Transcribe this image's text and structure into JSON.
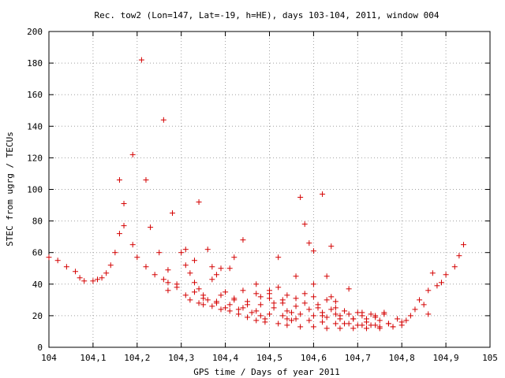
{
  "chart_data": {
    "type": "scatter",
    "title": "Rec. tow2 (Lon=147, Lat=-19, h=HE), days 103-104, 2011, window 004",
    "xlabel": "GPS time / Days of year 2011",
    "ylabel": "STEC from ugrg / TECUs",
    "xlim": [
      104,
      105
    ],
    "ylim": [
      0,
      200
    ],
    "xticks": [
      "104",
      "104,1",
      "104,2",
      "104,3",
      "104,4",
      "104,5",
      "104,6",
      "104,7",
      "104,8",
      "104,9",
      "105"
    ],
    "xtick_values": [
      104,
      104.1,
      104.2,
      104.3,
      104.4,
      104.5,
      104.6,
      104.7,
      104.8,
      104.9,
      105
    ],
    "yticks": [
      "0",
      "20",
      "40",
      "60",
      "80",
      "100",
      "120",
      "140",
      "160",
      "180",
      "200"
    ],
    "ytick_values": [
      0,
      20,
      40,
      60,
      80,
      100,
      120,
      140,
      160,
      180,
      200
    ],
    "grid": true,
    "marker": "+",
    "color": "#d40000",
    "points": [
      [
        104.0,
        57
      ],
      [
        104.02,
        55
      ],
      [
        104.04,
        51
      ],
      [
        104.06,
        48
      ],
      [
        104.07,
        44
      ],
      [
        104.08,
        42
      ],
      [
        104.1,
        42
      ],
      [
        104.11,
        43
      ],
      [
        104.13,
        47
      ],
      [
        104.14,
        52
      ],
      [
        104.15,
        60
      ],
      [
        104.16,
        72
      ],
      [
        104.17,
        77
      ],
      [
        104.17,
        91
      ],
      [
        104.16,
        106
      ],
      [
        104.19,
        122
      ],
      [
        104.21,
        182
      ],
      [
        104.19,
        65
      ],
      [
        104.2,
        57
      ],
      [
        104.22,
        51
      ],
      [
        104.22,
        106
      ],
      [
        104.23,
        76
      ],
      [
        104.24,
        46
      ],
      [
        104.26,
        43
      ],
      [
        104.25,
        60
      ],
      [
        104.27,
        41
      ],
      [
        104.26,
        144
      ],
      [
        104.27,
        49
      ],
      [
        104.28,
        85
      ],
      [
        104.29,
        40
      ],
      [
        104.29,
        38
      ],
      [
        104.3,
        60
      ],
      [
        104.31,
        62
      ],
      [
        104.31,
        52
      ],
      [
        104.32,
        47
      ],
      [
        104.33,
        55
      ],
      [
        104.33,
        41
      ],
      [
        104.34,
        37
      ],
      [
        104.35,
        33
      ],
      [
        104.36,
        30
      ],
      [
        104.34,
        92
      ],
      [
        104.36,
        62
      ],
      [
        104.37,
        51
      ],
      [
        104.37,
        43
      ],
      [
        104.38,
        46
      ],
      [
        104.38,
        28
      ],
      [
        104.39,
        50
      ],
      [
        104.4,
        35
      ],
      [
        104.4,
        25
      ],
      [
        104.41,
        50
      ],
      [
        104.42,
        30
      ],
      [
        104.42,
        57
      ],
      [
        104.43,
        24
      ],
      [
        104.44,
        68
      ],
      [
        104.45,
        27
      ],
      [
        104.46,
        22
      ],
      [
        104.47,
        40
      ],
      [
        104.48,
        32
      ],
      [
        104.48,
        20
      ],
      [
        104.49,
        18
      ],
      [
        104.5,
        36
      ],
      [
        104.51,
        28
      ],
      [
        104.52,
        57
      ],
      [
        104.53,
        30
      ],
      [
        104.54,
        18
      ],
      [
        104.55,
        22
      ],
      [
        104.55,
        17
      ],
      [
        104.56,
        45
      ],
      [
        104.57,
        95
      ],
      [
        104.58,
        78
      ],
      [
        104.59,
        66
      ],
      [
        104.6,
        61
      ],
      [
        104.6,
        40
      ],
      [
        104.61,
        25
      ],
      [
        104.62,
        20
      ],
      [
        104.62,
        97
      ],
      [
        104.63,
        45
      ],
      [
        104.64,
        32
      ],
      [
        104.64,
        64
      ],
      [
        104.65,
        25
      ],
      [
        104.66,
        20
      ],
      [
        104.67,
        15
      ],
      [
        104.68,
        37
      ],
      [
        104.69,
        18
      ],
      [
        104.7,
        14
      ],
      [
        104.71,
        22
      ],
      [
        104.72,
        16
      ],
      [
        104.73,
        14
      ],
      [
        104.74,
        19
      ],
      [
        104.75,
        13
      ],
      [
        104.76,
        22
      ],
      [
        104.77,
        15
      ],
      [
        104.78,
        13
      ],
      [
        104.79,
        18
      ],
      [
        104.8,
        14
      ],
      [
        104.81,
        17
      ],
      [
        104.82,
        20
      ],
      [
        104.83,
        24
      ],
      [
        104.84,
        30
      ],
      [
        104.85,
        27
      ],
      [
        104.86,
        21
      ],
      [
        104.86,
        36
      ],
      [
        104.87,
        47
      ],
      [
        104.88,
        39
      ],
      [
        104.89,
        41
      ],
      [
        104.9,
        46
      ],
      [
        104.92,
        51
      ],
      [
        104.93,
        58
      ],
      [
        104.94,
        65
      ],
      [
        104.12,
        44
      ],
      [
        104.27,
        36
      ],
      [
        104.31,
        33
      ],
      [
        104.32,
        30
      ],
      [
        104.34,
        28
      ],
      [
        104.35,
        27
      ],
      [
        104.37,
        26
      ],
      [
        104.39,
        24
      ],
      [
        104.41,
        23
      ],
      [
        104.43,
        21
      ],
      [
        104.45,
        19
      ],
      [
        104.47,
        17
      ],
      [
        104.49,
        16
      ],
      [
        104.52,
        15
      ],
      [
        104.54,
        14
      ],
      [
        104.57,
        13
      ],
      [
        104.6,
        13
      ],
      [
        104.63,
        12
      ],
      [
        104.66,
        12
      ],
      [
        104.69,
        12
      ],
      [
        104.72,
        12
      ],
      [
        104.75,
        12
      ],
      [
        104.78,
        13
      ],
      [
        104.33,
        35
      ],
      [
        104.35,
        31
      ],
      [
        104.38,
        29
      ],
      [
        104.41,
        27
      ],
      [
        104.44,
        25
      ],
      [
        104.47,
        23
      ],
      [
        104.5,
        21
      ],
      [
        104.53,
        20
      ],
      [
        104.56,
        18
      ],
      [
        104.59,
        17
      ],
      [
        104.62,
        16
      ],
      [
        104.65,
        15
      ],
      [
        104.68,
        15
      ],
      [
        104.71,
        14
      ],
      [
        104.74,
        14
      ],
      [
        104.77,
        15
      ],
      [
        104.8,
        16
      ],
      [
        104.39,
        33
      ],
      [
        104.42,
        31
      ],
      [
        104.45,
        29
      ],
      [
        104.48,
        27
      ],
      [
        104.51,
        25
      ],
      [
        104.54,
        23
      ],
      [
        104.57,
        21
      ],
      [
        104.6,
        20
      ],
      [
        104.63,
        19
      ],
      [
        104.66,
        18
      ],
      [
        104.69,
        18
      ],
      [
        104.72,
        18
      ],
      [
        104.75,
        17
      ],
      [
        104.44,
        36
      ],
      [
        104.47,
        34
      ],
      [
        104.5,
        31
      ],
      [
        104.53,
        28
      ],
      [
        104.56,
        26
      ],
      [
        104.59,
        24
      ],
      [
        104.62,
        22
      ],
      [
        104.65,
        21
      ],
      [
        104.68,
        21
      ],
      [
        104.71,
        20
      ],
      [
        104.74,
        20
      ],
      [
        104.5,
        34
      ],
      [
        104.52,
        38
      ],
      [
        104.54,
        33
      ],
      [
        104.56,
        31
      ],
      [
        104.58,
        28
      ],
      [
        104.61,
        27
      ],
      [
        104.64,
        24
      ],
      [
        104.67,
        23
      ],
      [
        104.7,
        22
      ],
      [
        104.73,
        21
      ],
      [
        104.76,
        21
      ],
      [
        104.58,
        34
      ],
      [
        104.6,
        32
      ],
      [
        104.63,
        30
      ],
      [
        104.65,
        29
      ]
    ]
  }
}
